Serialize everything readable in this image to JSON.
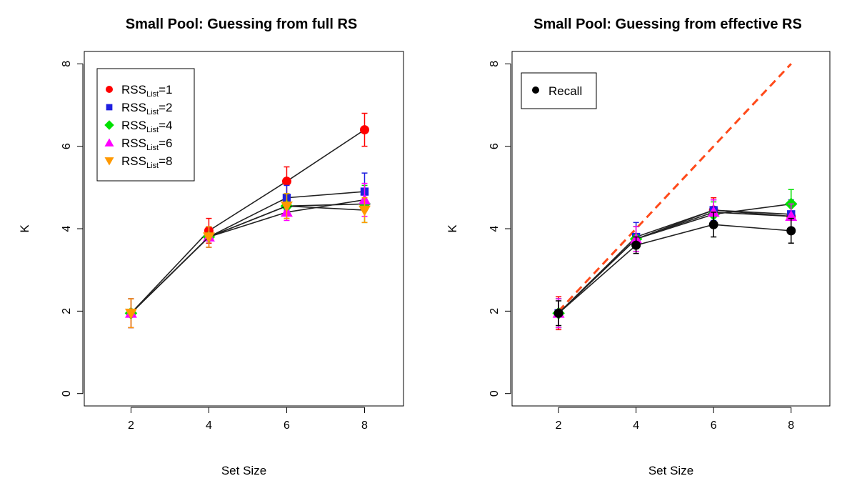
{
  "chart_data": [
    {
      "type": "line",
      "title": "Small Pool: Guessing from full RS",
      "xlabel": "Set Size",
      "ylabel": "K",
      "x": [
        2,
        4,
        6,
        8
      ],
      "xticks": [
        "2",
        "4",
        "6",
        "8"
      ],
      "yticks": [
        "0",
        "2",
        "4",
        "6",
        "8"
      ],
      "xlim": [
        0.8,
        9.0
      ],
      "ylim": [
        -0.3,
        8.3
      ],
      "grid": false,
      "legend_position": "top-left",
      "legend_base": "RSS",
      "legend_subscript": "List",
      "series": [
        {
          "name": "RSS List=1",
          "label_suffix": "=1",
          "color": "#ff0000",
          "marker": "circle",
          "values": [
            1.95,
            3.95,
            5.15,
            6.4
          ],
          "err": [
            0.35,
            0.3,
            0.35,
            0.4
          ]
        },
        {
          "name": "RSS List=2",
          "label_suffix": "=2",
          "color": "#1f1fe0",
          "marker": "square",
          "values": [
            1.95,
            3.8,
            4.75,
            4.9
          ],
          "err": [
            0.35,
            0.25,
            0.3,
            0.45
          ]
        },
        {
          "name": "RSS List=4",
          "label_suffix": "=4",
          "color": "#00e000",
          "marker": "diamond",
          "values": [
            1.95,
            3.8,
            4.55,
            4.6
          ],
          "err": [
            0.35,
            0.25,
            0.3,
            0.45
          ]
        },
        {
          "name": "RSS List=6",
          "label_suffix": "=6",
          "color": "#ff00ff",
          "marker": "triangle-up",
          "values": [
            1.95,
            3.8,
            4.4,
            4.7
          ],
          "err": [
            0.35,
            0.25,
            0.2,
            0.4
          ]
        },
        {
          "name": "RSS List=8",
          "label_suffix": "=8",
          "color": "#ff9900",
          "marker": "triangle-down",
          "values": [
            1.95,
            3.8,
            4.55,
            4.45
          ],
          "err": [
            0.35,
            0.25,
            0.3,
            0.3
          ]
        }
      ]
    },
    {
      "type": "line",
      "title": "Small Pool: Guessing from effective RS",
      "xlabel": "Set Size",
      "ylabel": "K",
      "x": [
        2,
        4,
        6,
        8
      ],
      "xticks": [
        "2",
        "4",
        "6",
        "8"
      ],
      "yticks": [
        "0",
        "2",
        "4",
        "6",
        "8"
      ],
      "xlim": [
        0.8,
        9.0
      ],
      "ylim": [
        -0.3,
        8.3
      ],
      "grid": false,
      "legend_position": "top-left",
      "legend_label": "Recall",
      "reference_line": {
        "x": [
          2,
          8
        ],
        "y": [
          2,
          8
        ],
        "color": "#ff4a1a",
        "style": "dashed"
      },
      "series": [
        {
          "color": "#ff0000",
          "marker": "circle",
          "values": [
            1.95,
            3.75,
            4.45,
            4.3
          ],
          "err": [
            0.4,
            0.3,
            0.3,
            0.3
          ]
        },
        {
          "color": "#1f1fe0",
          "marker": "square",
          "values": [
            1.95,
            3.8,
            4.45,
            4.35
          ],
          "err": [
            0.35,
            0.35,
            0.25,
            0.35
          ]
        },
        {
          "color": "#00e000",
          "marker": "diamond",
          "values": [
            1.95,
            3.75,
            4.35,
            4.6
          ],
          "err": [
            0.35,
            0.3,
            0.3,
            0.35
          ]
        },
        {
          "color": "#ff00ff",
          "marker": "triangle-up",
          "values": [
            1.95,
            3.75,
            4.4,
            4.3
          ],
          "err": [
            0.35,
            0.3,
            0.3,
            0.3
          ]
        },
        {
          "color": "#000000",
          "marker": "circle",
          "values": [
            1.95,
            3.6,
            4.1,
            3.95
          ],
          "err": [
            0.3,
            0.2,
            0.3,
            0.3
          ]
        }
      ]
    }
  ]
}
